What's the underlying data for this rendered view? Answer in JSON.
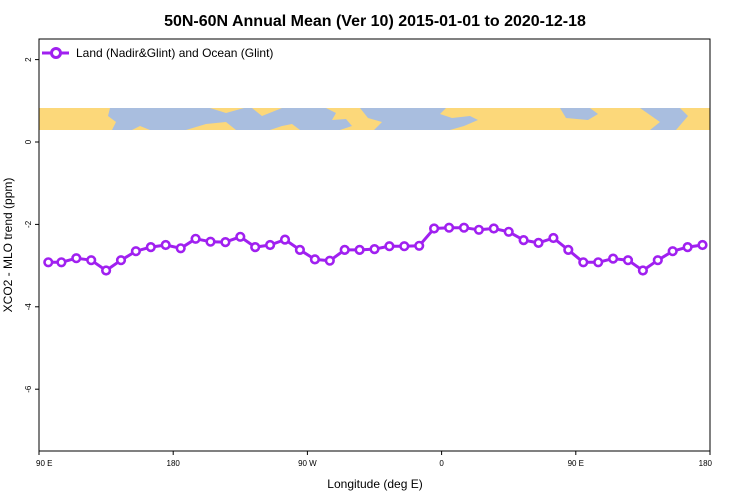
{
  "chart_data": {
    "type": "line",
    "title": "50N-60N Annual Mean (Ver 10)   2015-01-01 to 2020-12-18",
    "xlabel": "Longitude (deg E)",
    "ylabel": "XCO2 - MLO trend (ppm)",
    "xlim": [
      90,
      450
    ],
    "ylim": [
      -7.5,
      2.5
    ],
    "x_ticks": [
      {
        "value": 90,
        "label": "90 E"
      },
      {
        "value": 162,
        "label": "180"
      },
      {
        "value": 234,
        "label": "90 W"
      },
      {
        "value": 306,
        "label": "0"
      },
      {
        "value": 378,
        "label": "90 E"
      },
      {
        "value": 450,
        "label": "180"
      }
    ],
    "y_ticks": [
      {
        "value": 2,
        "label": "2"
      },
      {
        "value": 0,
        "label": "0"
      },
      {
        "value": -2,
        "label": "-2"
      },
      {
        "value": -4,
        "label": "-4"
      },
      {
        "value": -6,
        "label": "-6"
      }
    ],
    "grid": false,
    "legend_position": "top-left",
    "series": [
      {
        "name": "Land (Nadir&Glint) and Ocean (Glint)",
        "color": "#a020f0",
        "x": [
          95,
          102,
          110,
          118,
          126,
          134,
          142,
          150,
          158,
          166,
          174,
          182,
          190,
          198,
          206,
          214,
          222,
          230,
          238,
          246,
          254,
          262,
          270,
          278,
          286,
          294,
          302,
          310,
          318,
          326,
          334,
          342,
          350,
          358,
          366,
          374,
          382,
          390,
          398,
          406,
          414,
          422,
          430,
          438,
          446
        ],
        "values": [
          -2.92,
          -2.92,
          -2.82,
          -2.87,
          -3.12,
          -2.87,
          -2.65,
          -2.55,
          -2.5,
          -2.58,
          -2.35,
          -2.42,
          -2.43,
          -2.3,
          -2.55,
          -2.5,
          -2.37,
          -2.62,
          -2.85,
          -2.88,
          -2.62,
          -2.62,
          -2.6,
          -2.53,
          -2.53,
          -2.52,
          -2.1,
          -2.08,
          -2.08,
          -2.13,
          -2.1,
          -2.18,
          -2.38,
          -2.45,
          -2.33,
          -2.62,
          -2.92,
          -2.92,
          -2.83,
          -2.87,
          -3.12,
          -2.87,
          -2.65,
          -2.55,
          -2.5
        ]
      }
    ],
    "map_strip": {
      "y_range": [
        0.25,
        0.75
      ],
      "ocean_color": "#a9bedf",
      "land_color": "#fcd87a"
    }
  }
}
